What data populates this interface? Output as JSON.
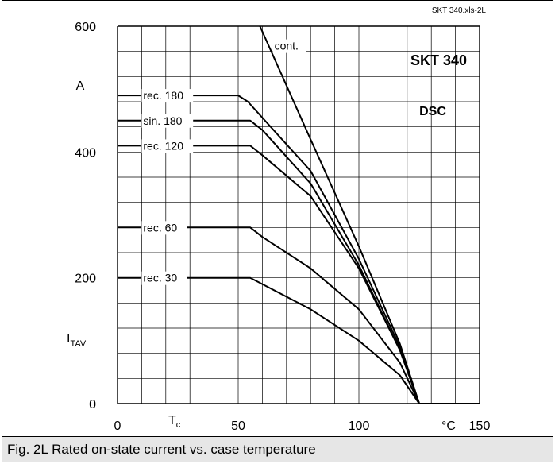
{
  "filename": "SKT 340.xls-2L",
  "caption": "Fig. 2L Rated on-state current vs. case temperature",
  "chart_data": {
    "type": "line",
    "title": "SKT 340",
    "subtitle": "DSC",
    "xlabel_sym": "T",
    "xlabel_sub": "c",
    "xunit": "°C",
    "ylabel_sym": "I",
    "ylabel_sub": "TAV",
    "yunit": "A",
    "xlim": [
      0,
      150
    ],
    "ylim": [
      0,
      600
    ],
    "xticks": [
      "0",
      "50",
      "100",
      "150"
    ],
    "yticks": [
      "0",
      "200",
      "400",
      "600"
    ],
    "grid": true,
    "series": [
      {
        "name": "rec. 180",
        "x": [
          0,
          50,
          54,
          80,
          100,
          117,
          125
        ],
        "y": [
          490,
          490,
          480,
          370,
          230,
          90,
          0
        ]
      },
      {
        "name": "sin. 180",
        "x": [
          0,
          55,
          60,
          80,
          100,
          117,
          125
        ],
        "y": [
          450,
          450,
          435,
          350,
          220,
          85,
          0
        ]
      },
      {
        "name": "rec. 120",
        "x": [
          0,
          55,
          60,
          80,
          100,
          117,
          125
        ],
        "y": [
          410,
          410,
          395,
          330,
          215,
          85,
          0
        ]
      },
      {
        "name": "rec. 60",
        "x": [
          0,
          55,
          60,
          80,
          100,
          117,
          125
        ],
        "y": [
          280,
          280,
          265,
          215,
          150,
          65,
          0
        ]
      },
      {
        "name": "rec. 30",
        "x": [
          0,
          55,
          60,
          80,
          100,
          117,
          125
        ],
        "y": [
          200,
          200,
          190,
          150,
          100,
          45,
          0
        ]
      },
      {
        "name": "cont.",
        "x": [
          59,
          80,
          100,
          117,
          125
        ],
        "y": [
          600,
          420,
          250,
          95,
          0
        ]
      }
    ]
  }
}
